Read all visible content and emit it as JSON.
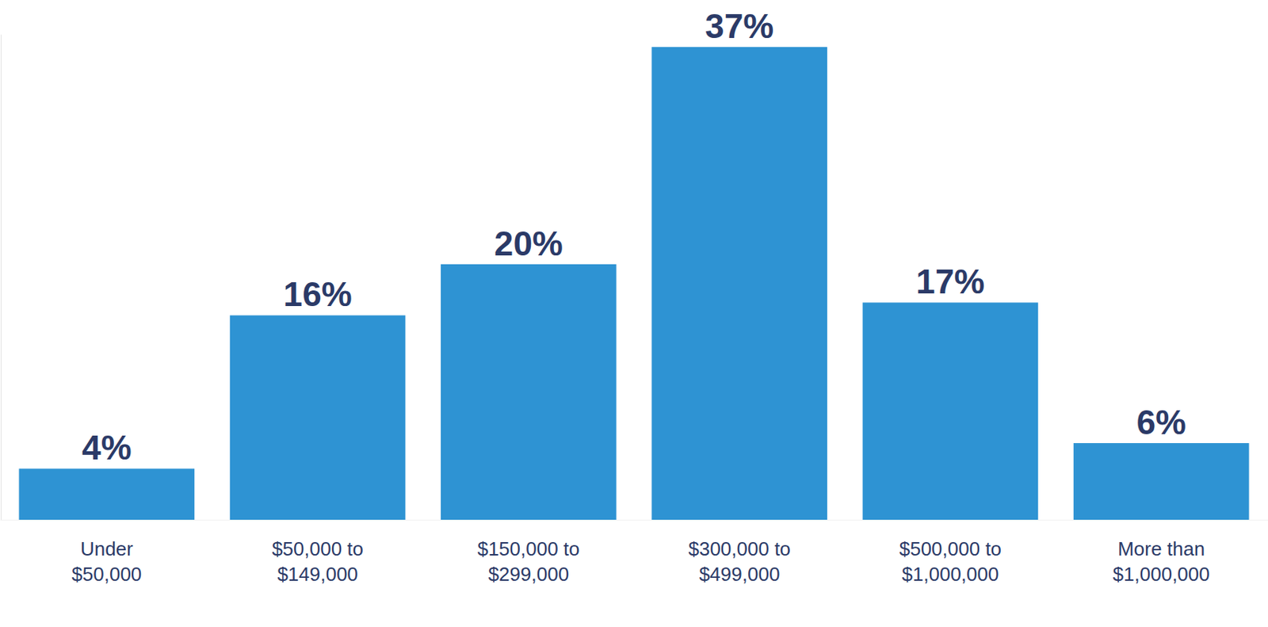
{
  "chart_data": {
    "type": "bar",
    "categories": [
      "Under $50,000",
      "$50,000 to $149,000",
      "$150,000 to $299,000",
      "$300,000 to $499,000",
      "$500,000 to $1,000,000",
      "More than $1,000,000"
    ],
    "values": [
      4,
      16,
      20,
      37,
      17,
      6
    ],
    "value_labels": [
      "4%",
      "16%",
      "20%",
      "37%",
      "17%",
      "6%"
    ],
    "color": "#2e93d3",
    "ylim": [
      0,
      38
    ],
    "yticks": [],
    "grid": false,
    "data_labels": true,
    "tick_labels": "x"
  }
}
